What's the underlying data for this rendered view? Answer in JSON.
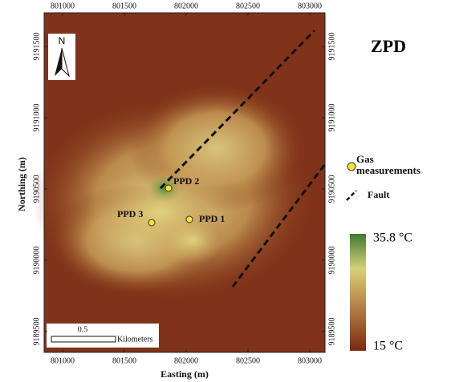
{
  "title": "ZPD",
  "x_axis": {
    "label": "Easting (m)",
    "ticks": [
      801000,
      801500,
      802000,
      802500,
      803000
    ]
  },
  "y_axis": {
    "label": "Northing (m)",
    "ticks": [
      9189500,
      9190000,
      9190500,
      9191000,
      9191500
    ]
  },
  "points": [
    {
      "label": "PPD 2"
    },
    {
      "label": "PPD 3"
    },
    {
      "label": "PPD 1"
    }
  ],
  "legend": {
    "points": "Gas measurements",
    "fault": "Fault"
  },
  "colorbar": {
    "max": "35.8 °C",
    "min": "15 °C"
  },
  "scale_bar": {
    "value": "0.5",
    "unit": "Kilometers"
  },
  "north": "N"
}
